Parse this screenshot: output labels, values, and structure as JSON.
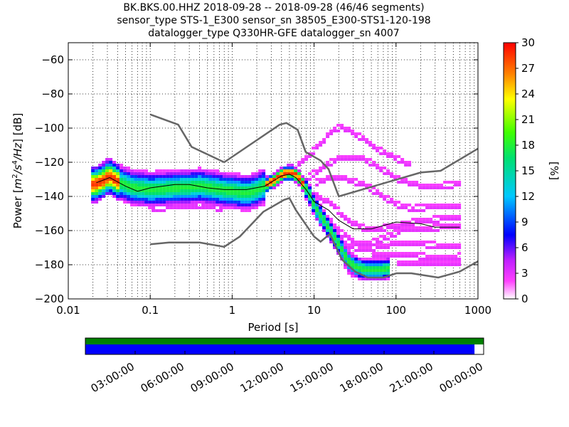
{
  "title": {
    "line1": "BK.BKS.00.HHZ   2018-09-28 -- 2018-09-28  (46/46 segments)",
    "line2": "sensor_type STS-1_E300 sensor_sn 38505_E300-STS1-120-198",
    "line3": "datalogger_type Q330HR-GFE datalogger_sn 4007"
  },
  "chart_data": {
    "type": "heatmap",
    "xlabel": "Period [s]",
    "ylabel": "Power [m²/s⁴/Hz] [dB]",
    "ylabel_parts": {
      "prefix": "Power [",
      "m": "m",
      "e2": "2",
      "s": "/s",
      "e4": "4",
      "hz": "/Hz",
      "suffix": "] [dB]"
    },
    "x_scale": "log",
    "xlim": [
      0.01,
      1000
    ],
    "ylim": [
      -200,
      -50
    ],
    "x_tick_labels": [
      "0.01",
      "0.1",
      "1",
      "10",
      "100",
      "1000"
    ],
    "x_ticks": [
      0.01,
      0.1,
      1,
      10,
      100,
      1000
    ],
    "y_ticks": [
      -60,
      -80,
      -100,
      -120,
      -140,
      -160,
      -180,
      -200
    ],
    "y_tick_labels": [
      "−60",
      "−80",
      "−100",
      "−120",
      "−140",
      "−160",
      "−180",
      "−200"
    ],
    "grid": true,
    "colorbar": {
      "label": "[%]",
      "range": [
        0,
        30
      ],
      "ticks": [
        0,
        3,
        6,
        9,
        12,
        15,
        18,
        21,
        24,
        27,
        30
      ]
    },
    "nhnm": [
      [
        0.1,
        -92
      ],
      [
        0.22,
        -98
      ],
      [
        0.32,
        -111
      ],
      [
        0.8,
        -120
      ],
      [
        3.8,
        -98
      ],
      [
        4.6,
        -97
      ],
      [
        6.3,
        -101
      ],
      [
        7.9,
        -114
      ],
      [
        12,
        -119
      ],
      [
        15,
        -124
      ],
      [
        20,
        -140
      ],
      [
        200,
        -126
      ],
      [
        350,
        -125
      ],
      [
        1000,
        -112
      ]
    ],
    "nlnm": [
      [
        0.1,
        -168
      ],
      [
        0.17,
        -167
      ],
      [
        0.4,
        -167
      ],
      [
        0.8,
        -169.5
      ],
      [
        1.24,
        -163.5
      ],
      [
        2.4,
        -149
      ],
      [
        4.3,
        -142
      ],
      [
        5,
        -141
      ],
      [
        6,
        -148
      ],
      [
        10,
        -163.5
      ],
      [
        12,
        -166.5
      ],
      [
        15.6,
        -162
      ],
      [
        21.9,
        -177
      ],
      [
        31.6,
        -184
      ],
      [
        45,
        -187.5
      ],
      [
        70,
        -187.5
      ],
      [
        101,
        -185
      ],
      [
        154,
        -185
      ],
      [
        328,
        -187.5
      ],
      [
        600,
        -184
      ],
      [
        1000,
        -178
      ]
    ],
    "mean_curve": [
      [
        0.022,
        -132
      ],
      [
        0.032,
        -129
      ],
      [
        0.05,
        -134
      ],
      [
        0.07,
        -137
      ],
      [
        0.1,
        -135
      ],
      [
        0.2,
        -133
      ],
      [
        0.3,
        -133
      ],
      [
        0.5,
        -135
      ],
      [
        0.8,
        -136
      ],
      [
        1.5,
        -136
      ],
      [
        2.5,
        -134
      ],
      [
        4,
        -128
      ],
      [
        5,
        -127
      ],
      [
        6,
        -129
      ],
      [
        8,
        -136
      ],
      [
        10,
        -143
      ],
      [
        15,
        -148
      ],
      [
        20,
        -154
      ],
      [
        30,
        -159
      ],
      [
        50,
        -159
      ],
      [
        100,
        -155
      ],
      [
        200,
        -156
      ],
      [
        300,
        -158
      ],
      [
        600,
        -158
      ]
    ],
    "mode_curve": [
      [
        0.02,
        -133
      ],
      [
        0.025,
        -131
      ],
      [
        0.03,
        -128
      ],
      [
        0.04,
        -132
      ],
      [
        0.06,
        -135
      ],
      [
        0.1,
        -136
      ],
      [
        0.2,
        -135
      ],
      [
        0.4,
        -134
      ],
      [
        0.7,
        -136
      ],
      [
        1,
        -137
      ],
      [
        1.5,
        -138
      ],
      [
        2,
        -136
      ],
      [
        3,
        -131
      ],
      [
        4,
        -127
      ],
      [
        5,
        -126
      ],
      [
        6,
        -128
      ],
      [
        8,
        -137
      ],
      [
        10,
        -147
      ],
      [
        15,
        -160
      ],
      [
        20,
        -170
      ],
      [
        25,
        -178
      ],
      [
        30,
        -181
      ],
      [
        40,
        -183
      ],
      [
        60,
        -183
      ],
      [
        80,
        -182
      ]
    ],
    "outlier_curves": [
      [
        [
          6,
          -123
        ],
        [
          10,
          -113
        ],
        [
          15,
          -104
        ],
        [
          20,
          -100
        ],
        [
          25,
          -102
        ],
        [
          40,
          -108
        ],
        [
          60,
          -114
        ],
        [
          100,
          -119
        ],
        [
          150,
          -123
        ]
      ],
      [
        [
          8,
          -130
        ],
        [
          12,
          -124
        ],
        [
          20,
          -118
        ],
        [
          35,
          -118
        ],
        [
          60,
          -124
        ],
        [
          100,
          -131
        ],
        [
          200,
          -135
        ],
        [
          600,
          -134
        ]
      ],
      [
        [
          10,
          -133
        ],
        [
          15,
          -130
        ],
        [
          20,
          -130
        ],
        [
          40,
          -134
        ],
        [
          60,
          -140
        ],
        [
          100,
          -146
        ],
        [
          150,
          -148
        ],
        [
          300,
          -147
        ],
        [
          600,
          -147
        ]
      ],
      [
        [
          10,
          -140
        ],
        [
          15,
          -145
        ],
        [
          25,
          -155
        ],
        [
          40,
          -160
        ],
        [
          60,
          -160
        ],
        [
          100,
          -158
        ],
        [
          200,
          -155
        ],
        [
          600,
          -153
        ]
      ],
      [
        [
          12,
          -150
        ],
        [
          20,
          -162
        ],
        [
          30,
          -168
        ],
        [
          50,
          -168
        ],
        [
          80,
          -164
        ],
        [
          120,
          -160
        ],
        [
          200,
          -160
        ],
        [
          600,
          -158
        ]
      ],
      [
        [
          15,
          -158
        ],
        [
          25,
          -170
        ],
        [
          40,
          -172
        ],
        [
          70,
          -170
        ],
        [
          100,
          -168
        ],
        [
          200,
          -169
        ],
        [
          400,
          -170
        ],
        [
          600,
          -170
        ]
      ],
      [
        [
          50,
          -175
        ],
        [
          100,
          -175
        ],
        [
          200,
          -176
        ],
        [
          300,
          -177
        ],
        [
          600,
          -176
        ]
      ],
      [
        [
          100,
          -180
        ],
        [
          200,
          -180
        ],
        [
          400,
          -180
        ],
        [
          600,
          -180
        ]
      ]
    ],
    "timeline": {
      "tick_labels": [
        "03:00:00",
        "06:00:00",
        "09:00:00",
        "12:00:00",
        "15:00:00",
        "18:00:00",
        "21:00:00",
        "00:00:00"
      ],
      "coverage_fraction": 0.977,
      "colors": {
        "top": "#008000",
        "bottom": "#0000ff"
      }
    }
  },
  "colors": {
    "noise_model": "#666666",
    "mean": "#000000"
  }
}
